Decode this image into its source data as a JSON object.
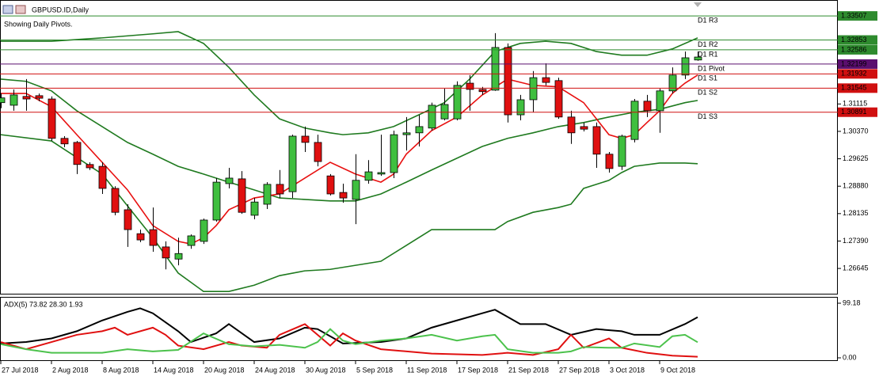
{
  "chart_data": [
    {
      "type": "candlestick",
      "title": "GBPUSD.ID,Daily",
      "subtitle": "Showing Daily Pivots.",
      "categories": [
        "27 Jul 2018",
        null,
        null,
        null,
        "2 Aug 2018",
        null,
        null,
        null,
        "8 Aug 2018",
        null,
        null,
        null,
        "14 Aug 2018",
        null,
        null,
        null,
        "20 Aug 2018",
        null,
        null,
        null,
        "24 Aug 2018",
        null,
        null,
        null,
        "30 Aug 2018",
        null,
        null,
        null,
        "5 Sep 2018",
        null,
        null,
        null,
        "11 Sep 2018",
        null,
        null,
        null,
        "17 Sep 2018",
        null,
        null,
        null,
        "21 Sep 2018",
        null,
        null,
        null,
        "27 Sep 2018",
        null,
        null,
        null,
        "3 Oct 2018",
        null,
        null,
        null,
        "9 Oct 2018",
        null,
        null,
        null
      ],
      "open": [
        1.3115,
        1.3108,
        1.3132,
        1.3134,
        1.3125,
        1.3018,
        1.3007,
        1.2947,
        1.2942,
        1.2882,
        1.2824,
        1.2759,
        1.277,
        1.2723,
        1.269,
        1.2727,
        1.2738,
        1.2796,
        1.2895,
        1.2908,
        1.2809,
        1.2839,
        1.2893,
        1.2873,
        1.3024,
        1.3007,
        1.2916,
        1.2871,
        1.2852,
        1.2904,
        1.2921,
        1.2925,
        1.3028,
        1.3033,
        1.3046,
        1.3071,
        1.3071,
        1.3168,
        1.3151,
        1.3149,
        1.3265,
        1.3082,
        1.3123,
        1.3183,
        1.3175,
        1.3076,
        1.305,
        1.305,
        1.2975,
        1.2942,
        1.3015,
        1.3119,
        1.3093,
        1.3147,
        1.319,
        1.3231
      ],
      "high": [
        1.314,
        1.3151,
        1.3179,
        1.314,
        1.3132,
        1.3024,
        1.3011,
        1.2953,
        1.2953,
        1.2888,
        1.2839,
        1.277,
        1.283,
        1.2738,
        1.2748,
        1.2757,
        1.28,
        1.291,
        1.2938,
        1.2929,
        1.2856,
        1.2899,
        1.2932,
        1.3028,
        1.305,
        1.3028,
        1.2921,
        1.2895,
        1.2975,
        1.2959,
        1.3028,
        1.3039,
        1.3076,
        1.3082,
        1.3115,
        1.3153,
        1.3173,
        1.319,
        1.3158,
        1.3304,
        1.3276,
        1.3136,
        1.3201,
        1.3222,
        1.3183,
        1.3093,
        1.3061,
        1.3061,
        1.2981,
        1.3028,
        1.3125,
        1.3136,
        1.3153,
        1.3211,
        1.3254,
        1.3254
      ],
      "low": [
        1.31,
        1.3093,
        1.3093,
        1.3119,
        1.3011,
        1.2994,
        1.2921,
        1.2932,
        1.2867,
        1.2809,
        1.2723,
        1.2736,
        1.271,
        1.2662,
        1.2673,
        1.2718,
        1.2731,
        1.2792,
        1.2882,
        1.2813,
        1.2798,
        1.2826,
        1.2856,
        1.2856,
        1.2981,
        1.2942,
        1.2863,
        1.2843,
        1.2785,
        1.2895,
        1.2916,
        1.291,
        1.2985,
        1.2996,
        1.3039,
        1.3067,
        1.3067,
        1.3093,
        1.3136,
        1.3147,
        1.3061,
        1.3067,
        1.3089,
        1.3162,
        1.3071,
        1.3003,
        1.3037,
        1.2938,
        1.2925,
        1.2932,
        1.3007,
        1.3076,
        1.3033,
        1.314,
        1.3179,
        1.3229
      ],
      "close": [
        1.3128,
        1.3136,
        1.3125,
        1.3127,
        1.3018,
        1.3003,
        1.2947,
        1.2938,
        1.2882,
        1.2817,
        1.277,
        1.2742,
        1.2727,
        1.2693,
        1.2705,
        1.2753,
        1.2796,
        1.2899,
        1.291,
        1.2817,
        1.2845,
        1.2893,
        1.2867,
        1.3024,
        1.3007,
        1.2955,
        1.2867,
        1.2856,
        1.2904,
        1.2927,
        1.2925,
        1.3028,
        1.3033,
        1.305,
        1.3108,
        1.311,
        1.3162,
        1.3151,
        1.3145,
        1.3265,
        1.3082,
        1.3123,
        1.3183,
        1.317,
        1.3076,
        1.3033,
        1.3043,
        1.2975,
        1.2936,
        1.3024,
        1.3119,
        1.3093,
        1.3147,
        1.319,
        1.3237,
        1.3239
      ],
      "up_color": "#3fbf3f",
      "down_color": "#e01010",
      "lines": [
        {
          "color": "#1f7a1f",
          "x": [
            0,
            4,
            8,
            12,
            14,
            16,
            18,
            20,
            22,
            24,
            26,
            27,
            29,
            31,
            33,
            35,
            37,
            39,
            41,
            43,
            45,
            47,
            49,
            51,
            53,
            55
          ],
          "values": [
            1.3282,
            1.3282,
            1.3291,
            1.3302,
            1.3308,
            1.3276,
            1.3211,
            1.3136,
            1.3071,
            1.3046,
            1.3033,
            1.3028,
            1.3033,
            1.305,
            1.3082,
            1.3115,
            1.3179,
            1.3254,
            1.3276,
            1.3282,
            1.3276,
            1.3254,
            1.3244,
            1.3244,
            1.3261,
            1.3291
          ]
        },
        {
          "color": "#1f7a1f",
          "x": [
            0,
            2,
            4,
            6,
            8,
            10,
            12,
            14,
            16,
            18,
            20,
            22,
            24,
            26,
            28,
            30,
            32,
            34,
            36,
            38,
            40,
            42,
            44,
            46,
            48,
            50,
            52,
            54,
            55
          ],
          "values": [
            1.3179,
            1.3173,
            1.3147,
            1.3093,
            1.305,
            1.3007,
            1.2975,
            1.2942,
            1.2921,
            1.2899,
            1.2878,
            1.2856,
            1.2852,
            1.2848,
            1.2848,
            1.2867,
            1.2899,
            1.2932,
            1.2964,
            1.2996,
            1.3018,
            1.3033,
            1.305,
            1.3061,
            1.3076,
            1.3089,
            1.3097,
            1.3115,
            1.3121
          ]
        },
        {
          "color": "#1f7a1f",
          "x": [
            0,
            4,
            8,
            12,
            14,
            16,
            18,
            20,
            22,
            24,
            26,
            28,
            30,
            32,
            34,
            36,
            38,
            39,
            40,
            42,
            44,
            45,
            46,
            48,
            49,
            50,
            52,
            54,
            55
          ],
          "values": [
            1.3028,
            1.3011,
            1.2921,
            1.2748,
            1.2652,
            1.2602,
            1.2602,
            1.2619,
            1.2645,
            1.2658,
            1.2662,
            1.2673,
            1.2684,
            1.2727,
            1.277,
            1.277,
            1.277,
            1.277,
            1.2792,
            1.2817,
            1.283,
            1.2839,
            1.2882,
            1.2904,
            1.2925,
            1.2942,
            1.2951,
            1.2951,
            1.2949
          ]
        },
        {
          "color": "#e81010",
          "x": [
            0,
            2,
            4,
            6,
            8,
            10,
            12,
            14,
            15,
            16,
            17,
            18,
            20,
            22,
            24,
            26,
            28,
            30,
            31,
            32,
            34,
            36,
            38,
            40,
            42,
            44,
            46,
            48,
            49,
            50,
            51,
            52,
            53,
            54,
            55
          ],
          "values": [
            1.314,
            1.314,
            1.3104,
            1.3028,
            1.2953,
            1.2878,
            1.2781,
            1.2738,
            1.2731,
            1.2748,
            1.2781,
            1.2824,
            1.2856,
            1.2867,
            1.291,
            1.2953,
            1.2921,
            1.2899,
            1.2921,
            1.2975,
            1.3039,
            1.3076,
            1.3136,
            1.3179,
            1.3162,
            1.3158,
            1.3115,
            1.3028,
            1.3018,
            1.3028,
            1.3061,
            1.3093,
            1.314,
            1.3168,
            1.319
          ]
        }
      ],
      "levels": [
        {
          "name": "D1 R3",
          "value": 1.33507,
          "color": "#2e8b2e"
        },
        {
          "name": "D1 R2",
          "value": 1.32853,
          "color": "#2e8b2e"
        },
        {
          "name": "D1 R1",
          "value": 1.32586,
          "color": "#2e8b2e"
        },
        {
          "name": "D1 Pivot",
          "value": 1.32199,
          "color": "#5a0f6e"
        },
        {
          "name": "D1 S1",
          "value": 1.31932,
          "color": "#d01010"
        },
        {
          "name": "D1 S2",
          "value": 1.31545,
          "color": "#d01010"
        },
        {
          "name": "D1 S3",
          "value": 1.30891,
          "color": "#d01010"
        }
      ],
      "ylim": [
        1.2598,
        1.3394
      ],
      "yticks": [
        1.31115,
        {
          "value": 1.3037,
          "label": "1.30370"
        },
        1.29625,
        {
          "value": 1.2888,
          "label": "1.28880"
        },
        1.28135,
        {
          "value": 1.2739,
          "label": "1.27390"
        },
        1.26645
      ]
    },
    {
      "type": "line",
      "title": "ADX(5) 73.82 28.30 1.93",
      "ylim": [
        0,
        99.18
      ],
      "yticks": [
        99.18,
        {
          "value": 0,
          "label": "0.00"
        }
      ],
      "series": [
        {
          "color": "#000000",
          "x": [
            0,
            2,
            4,
            6,
            8,
            10,
            11,
            12,
            14,
            15,
            17,
            18,
            20,
            22,
            24,
            25,
            27,
            30,
            32,
            34,
            36,
            38,
            39,
            41,
            43,
            45,
            47,
            49,
            50,
            52,
            54,
            55
          ],
          "values": [
            26.1,
            28.7,
            35.2,
            48.3,
            67.9,
            83.5,
            90.0,
            80.9,
            48.3,
            28.7,
            44.4,
            61.3,
            28.7,
            35.2,
            54.8,
            52.2,
            26.1,
            28.7,
            35.2,
            54.8,
            67.9,
            80.9,
            87.4,
            61.3,
            61.3,
            41.8,
            52.2,
            48.3,
            41.8,
            41.8,
            61.3,
            73.82
          ]
        },
        {
          "color": "#e01010",
          "x": [
            0,
            2,
            4,
            6,
            8,
            9,
            10,
            12,
            13,
            14,
            16,
            18,
            19,
            21,
            22,
            24,
            25,
            26,
            27,
            28,
            30,
            34,
            38,
            40,
            42,
            44,
            45,
            46,
            48,
            49,
            51,
            53,
            55
          ],
          "values": [
            28.7,
            15.7,
            28.7,
            41.8,
            48.3,
            54.8,
            41.8,
            54.8,
            41.8,
            22.2,
            15.7,
            28.7,
            22.2,
            18.3,
            41.8,
            61.3,
            41.8,
            22.2,
            44.4,
            31.3,
            15.7,
            7.8,
            5.2,
            9.1,
            5.2,
            15.7,
            41.8,
            18.3,
            35.2,
            18.3,
            9.1,
            3.9,
            1.93
          ]
        },
        {
          "color": "#4cc24c",
          "x": [
            0,
            2,
            4,
            6,
            8,
            10,
            12,
            14,
            16,
            18,
            20,
            22,
            24,
            25,
            26,
            27,
            28,
            30,
            32,
            34,
            36,
            38,
            39,
            40,
            42,
            44,
            45,
            46,
            48,
            49,
            50,
            52,
            53,
            54,
            55
          ],
          "values": [
            24.8,
            15.7,
            9.1,
            9.1,
            9.1,
            15.7,
            11.7,
            14.4,
            44.4,
            24.8,
            20.9,
            23.5,
            18.3,
            28.7,
            52.2,
            31.3,
            24.8,
            31.3,
            35.2,
            41.8,
            31.3,
            39.2,
            41.8,
            15.7,
            9.1,
            9.1,
            11.7,
            19.6,
            18.3,
            18.3,
            26.1,
            19.6,
            39.2,
            41.8,
            28.3
          ]
        }
      ]
    }
  ]
}
